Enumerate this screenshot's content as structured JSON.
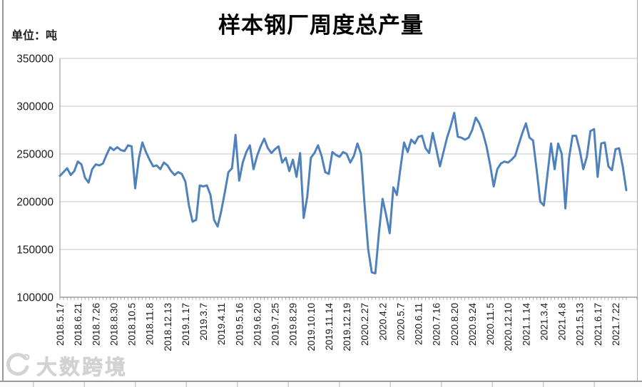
{
  "chart_data": {
    "type": "line",
    "title": "样本钢厂周度总产量",
    "unit_label": "单位：吨",
    "ylim": [
      100000,
      350000
    ],
    "yticks": [
      350000,
      300000,
      250000,
      200000,
      150000,
      100000
    ],
    "grid": true,
    "legend_position": "none",
    "line_color": "#4F81BD",
    "grid_color": "#c4c4c4",
    "axis_color": "#8c8c8c",
    "tick_label_color": "#1a1a1a",
    "label_every_n_points": 5,
    "x_labels": [
      "2018.5.17",
      "2018.6.21",
      "2018.7.26",
      "2018.8.30",
      "2018.10.5",
      "2018.11.8",
      "2018.12.13",
      "2019.1.17",
      "2019.3.7",
      "2019.4.11",
      "2019.5.16",
      "2019.6.20",
      "2019.7.25",
      "2019.8.29",
      "2019.10.10",
      "2019.11.14",
      "2019.12.19",
      "2020.2.27",
      "2020.4.2",
      "2020.5.7",
      "2020.6.11",
      "2020.7.16",
      "2020.8.20",
      "2020.9.24",
      "2020.11.5",
      "2020.12.10",
      "2021.1.14",
      "2021.3.4",
      "2021.4.8",
      "2021.5.13",
      "2021.6.17",
      "2021.7.22"
    ],
    "values": [
      227000,
      231000,
      235000,
      228000,
      232000,
      242000,
      239000,
      225000,
      220000,
      234000,
      239000,
      238000,
      240000,
      249000,
      257000,
      254000,
      257000,
      254000,
      253000,
      259000,
      258000,
      214000,
      245000,
      262000,
      252000,
      244000,
      237000,
      238000,
      234000,
      241000,
      238000,
      232000,
      228000,
      231000,
      229000,
      221000,
      196000,
      179000,
      181000,
      217000,
      216000,
      217000,
      207000,
      181000,
      174000,
      190000,
      210000,
      231000,
      235000,
      270000,
      222000,
      241000,
      252000,
      259000,
      234000,
      248000,
      258000,
      266000,
      256000,
      251000,
      255000,
      258000,
      241000,
      246000,
      232000,
      244000,
      226000,
      251000,
      183000,
      205000,
      246000,
      251000,
      259000,
      248000,
      231000,
      229000,
      252000,
      249000,
      247000,
      252000,
      250000,
      241000,
      248000,
      261000,
      250000,
      196000,
      150000,
      126000,
      125000,
      168000,
      203000,
      186000,
      167000,
      215000,
      207000,
      235000,
      262000,
      252000,
      265000,
      261000,
      268000,
      269000,
      256000,
      251000,
      272000,
      255000,
      237000,
      252000,
      267000,
      279000,
      293000,
      268000,
      267000,
      265000,
      267000,
      275000,
      288000,
      282000,
      272000,
      258000,
      239000,
      216000,
      234000,
      240000,
      242000,
      241000,
      244000,
      248000,
      260000,
      272000,
      282000,
      267000,
      264000,
      233000,
      200000,
      196000,
      228000,
      261000,
      234000,
      261000,
      250000,
      193000,
      245000,
      269000,
      269000,
      254000,
      234000,
      247000,
      274000,
      276000,
      226000,
      261000,
      262000,
      237000,
      233000,
      255000,
      256000,
      237000,
      212000
    ]
  },
  "watermark": {
    "text": "大数跨境",
    "icon": "swirl-logo-icon",
    "color": "#d2d2d2"
  }
}
